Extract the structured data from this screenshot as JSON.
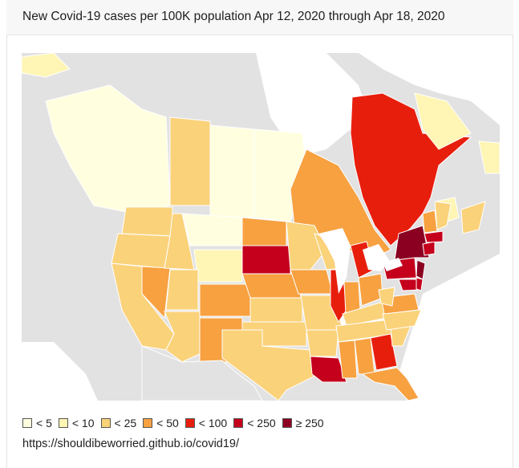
{
  "title": "New Covid-19 cases per 100K population Apr 12, 2020 through Apr 18, 2020",
  "source_url": "https://shouldibeworried.github.io/covid19/",
  "legend": [
    {
      "label": "< 5",
      "color": "#ffffe0"
    },
    {
      "label": "< 10",
      "color": "#fff5b4"
    },
    {
      "label": "< 25",
      "color": "#fad27a"
    },
    {
      "label": "< 50",
      "color": "#f7a141"
    },
    {
      "label": "< 100",
      "color": "#e81e0d"
    },
    {
      "label": "< 250",
      "color": "#c4001c"
    },
    {
      "label": "≥ 250",
      "color": "#8b0021"
    }
  ],
  "colors": {
    "land_no_data": "#e2e2e2",
    "water": "#ffffff",
    "borders": "#ffffff"
  }
}
